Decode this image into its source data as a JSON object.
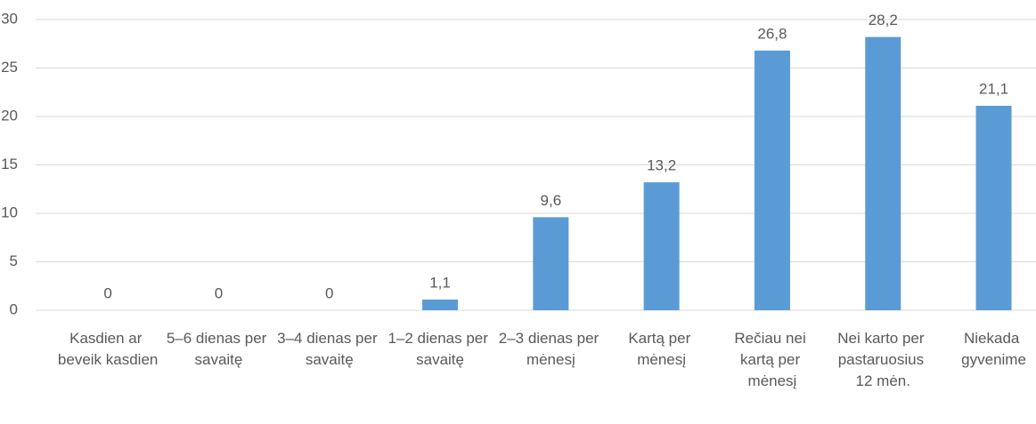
{
  "chart_data": {
    "type": "bar",
    "categories": [
      "Kasdien ar beveik kasdien",
      "5–6 dienas per savaitę",
      "3–4 dienas per savaitę",
      "1–2 dienas per savaitę",
      "2–3 dienas per mėnesį",
      "Kartą per mėnesį",
      "Rečiau nei kartą per mėnesį",
      "Nei karto per pastaruosius 12 mėn.",
      "Niekada gyvenime"
    ],
    "values": [
      0,
      0,
      0,
      1.1,
      9.6,
      13.2,
      26.8,
      28.2,
      21.1
    ],
    "value_labels": [
      "0",
      "0",
      "0",
      "1,1",
      "9,6",
      "13,2",
      "26,8",
      "28,2",
      "21,1"
    ],
    "color": "#5b9bd5",
    "ylim": [
      0,
      30
    ],
    "yticks": [
      0,
      5,
      10,
      15,
      20,
      25,
      30
    ],
    "grid": true
  }
}
